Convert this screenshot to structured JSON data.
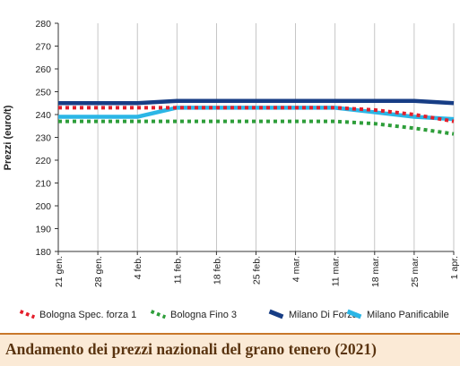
{
  "footer": {
    "title": "Andamento dei prezzi nazionali del grano tenero (2021)"
  },
  "colors": {
    "bologna_spec": "#e41e2b",
    "bologna_fino": "#2e9e3a",
    "milano_forza": "#173d85",
    "milano_panif": "#2bb6e6",
    "footer_bg": "#fbead6",
    "footer_border": "#c8782b",
    "grid": "#b8b8b8"
  },
  "chart_data": {
    "type": "line",
    "title": "",
    "xlabel": "",
    "ylabel": "Prezzi (euro/t)",
    "ylim": [
      180,
      280
    ],
    "yticks": [
      180,
      190,
      200,
      210,
      220,
      230,
      240,
      250,
      260,
      270,
      280
    ],
    "categories": [
      "21 gen.",
      "28 gen.",
      "4 feb.",
      "11 feb.",
      "18 feb.",
      "25 feb.",
      "4 mar.",
      "11 mar.",
      "18 mar.",
      "25 mar.",
      "1 apr."
    ],
    "grid": "vertical",
    "legend_position": "bottom",
    "series": [
      {
        "name": "Bologna Spec. forza 1",
        "style": "dotted",
        "color": "#e41e2b",
        "values": [
          243,
          243,
          243,
          243,
          243,
          243,
          243,
          243,
          242,
          240,
          237
        ]
      },
      {
        "name": "Bologna Fino 3",
        "style": "dotted",
        "color": "#2e9e3a",
        "values": [
          237,
          237,
          237,
          237,
          237,
          237,
          237,
          237,
          236,
          234,
          231.5
        ]
      },
      {
        "name": "Milano Di Forza",
        "style": "solid",
        "color": "#173d85",
        "values": [
          245,
          245,
          245,
          246,
          246,
          246,
          246,
          246,
          246,
          246,
          245
        ]
      },
      {
        "name": "Milano Panificabile",
        "style": "solid",
        "color": "#2bb6e6",
        "values": [
          239,
          239,
          239,
          243,
          243,
          243,
          243,
          243,
          241,
          239,
          238
        ]
      }
    ]
  }
}
